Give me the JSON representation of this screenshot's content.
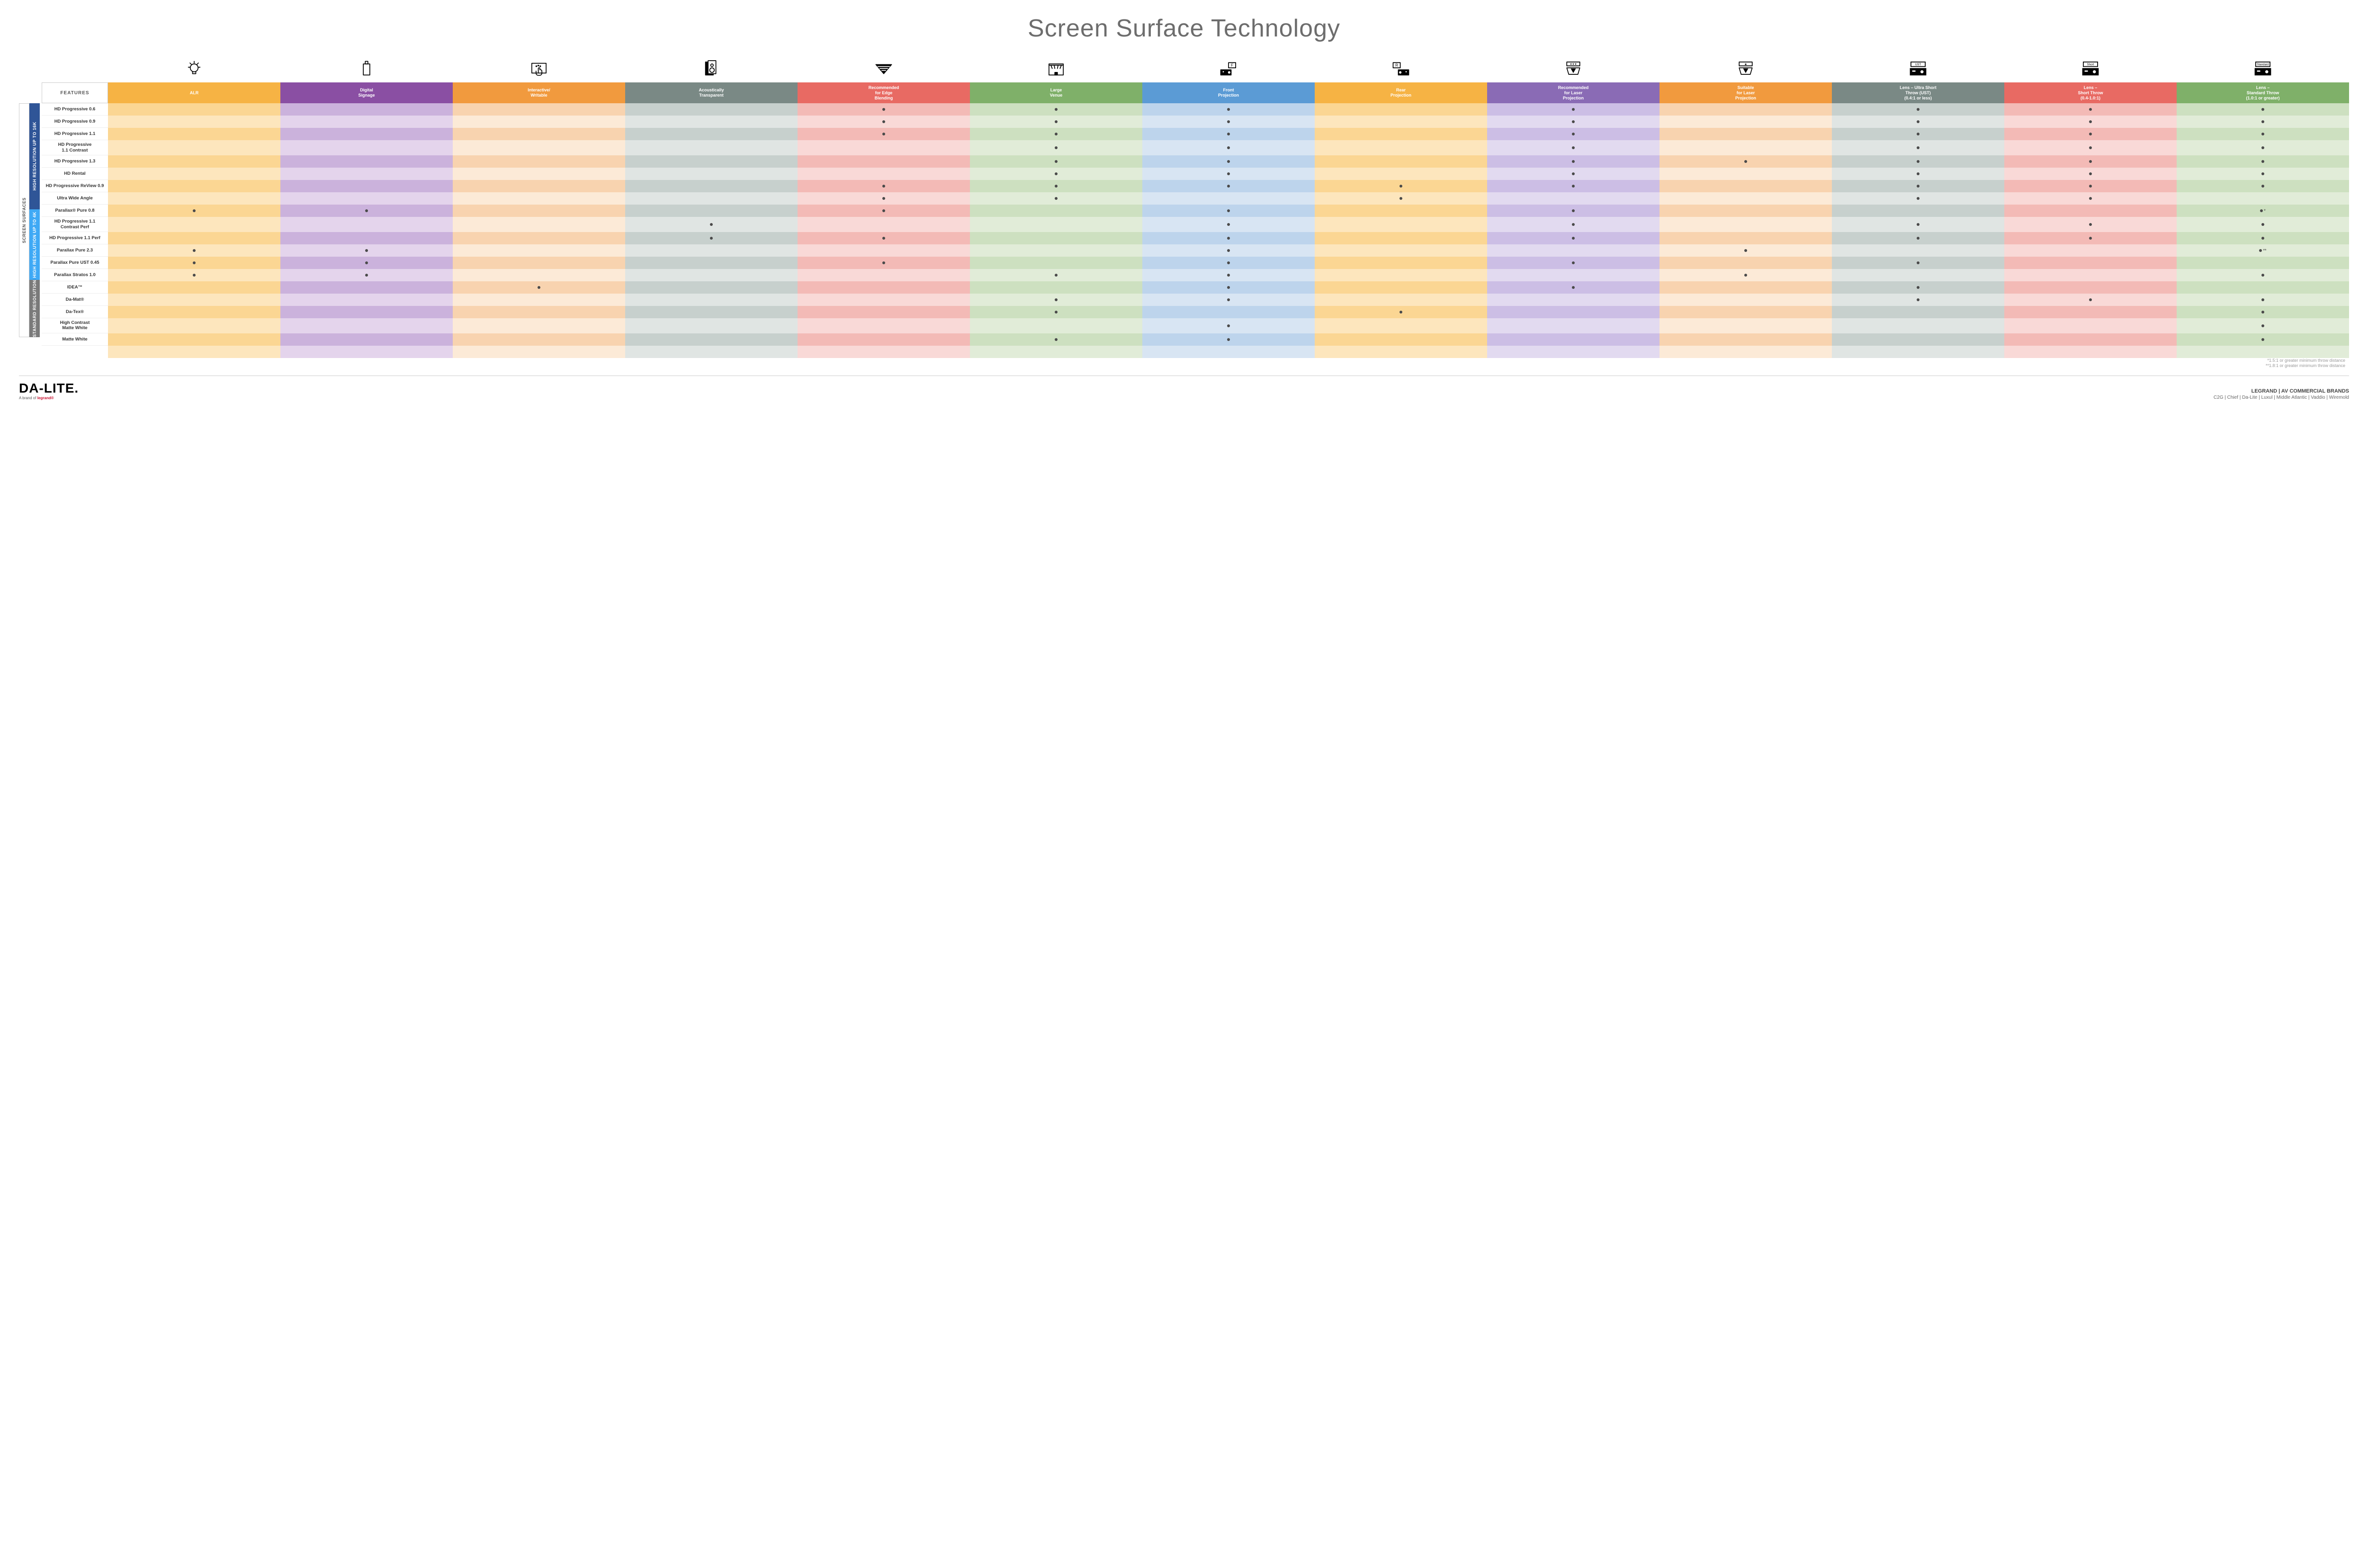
{
  "title": "Screen Surface Technology",
  "features_header": "FEATURES",
  "columns": [
    {
      "id": "alr",
      "label": "ALR",
      "color": "#f6b344",
      "pale": "#fde6bd",
      "mid": "#fbd693",
      "icon": "bulb"
    },
    {
      "id": "signage",
      "label": "Digital\nSignage",
      "color": "#8a4fa3",
      "pale": "#e4d4ec",
      "mid": "#cbb2dc",
      "icon": "signage"
    },
    {
      "id": "interactive",
      "label": "Interactive/\nWritable",
      "color": "#f19a3e",
      "pale": "#fcead7",
      "mid": "#f8d3af",
      "icon": "touch"
    },
    {
      "id": "acoustic",
      "label": "Acoustically\nTransparent",
      "color": "#7a8985",
      "pale": "#e0e5e3",
      "mid": "#c7d0cd",
      "icon": "speaker"
    },
    {
      "id": "edge",
      "label": "Recommended\nfor Edge\nBlending",
      "color": "#e86a63",
      "pale": "#f9d9d7",
      "mid": "#f3bab6",
      "icon": "blend"
    },
    {
      "id": "large",
      "label": "Large\nVenue",
      "color": "#7fb069",
      "pale": "#e1ecd8",
      "mid": "#cde0c0",
      "icon": "venue"
    },
    {
      "id": "front",
      "label": "Front\nProjection",
      "color": "#5b9bd5",
      "pale": "#d8e5f3",
      "mid": "#bdd4ec",
      "icon": "front"
    },
    {
      "id": "rear",
      "label": "Rear\nProjection",
      "color": "#f6b344",
      "pale": "#fde6bd",
      "mid": "#fbd693",
      "icon": "rear"
    },
    {
      "id": "reclaser",
      "label": "Recommended\nfor Laser\nProjection",
      "color": "#8a6bb5",
      "pale": "#e2daf0",
      "mid": "#ccbee5",
      "icon": "laser3"
    },
    {
      "id": "suitlaser",
      "label": "Suitable\nfor Laser\nProjection",
      "color": "#f19a3e",
      "pale": "#fcead7",
      "mid": "#f8d3af",
      "icon": "laser1"
    },
    {
      "id": "ust",
      "label": "Lens – Ultra Short\nThrow (UST)\n(0.4:1 or less)",
      "color": "#7a8985",
      "pale": "#e0e5e3",
      "mid": "#c7d0cd",
      "icon": "ust"
    },
    {
      "id": "short",
      "label": "Lens –\nShort Throw\n(0.4-1.0:1)",
      "color": "#e86a63",
      "pale": "#f9d9d7",
      "mid": "#f3bab6",
      "icon": "short"
    },
    {
      "id": "std",
      "label": "Lens –\nStandard Throw\n(1.0:1 or greater)",
      "color": "#7fb069",
      "pale": "#e1ecd8",
      "mid": "#cde0c0",
      "icon": "standard"
    }
  ],
  "side_outer": {
    "label": "SCREEN SURFACES",
    "color": "#ffffff",
    "text": "#555",
    "border": "#ccc"
  },
  "groups": [
    {
      "label": "HIGH RESOLUTION UP TO 16K",
      "color": "#2f5597",
      "rows": [
        {
          "name": "HD Progressive 0.6",
          "cells": [
            0,
            0,
            0,
            0,
            1,
            1,
            1,
            0,
            1,
            0,
            1,
            1,
            1
          ]
        },
        {
          "name": "HD Progressive 0.9",
          "cells": [
            0,
            0,
            0,
            0,
            1,
            1,
            1,
            0,
            1,
            0,
            1,
            1,
            1
          ]
        },
        {
          "name": "HD Progressive 1.1",
          "cells": [
            0,
            0,
            0,
            0,
            1,
            1,
            1,
            0,
            1,
            0,
            1,
            1,
            1
          ]
        },
        {
          "name": "HD Progressive\n1.1 Contrast",
          "cells": [
            0,
            0,
            0,
            0,
            0,
            1,
            1,
            0,
            1,
            0,
            1,
            1,
            1
          ]
        },
        {
          "name": "HD Progressive 1.3",
          "cells": [
            0,
            0,
            0,
            0,
            0,
            1,
            1,
            0,
            1,
            1,
            1,
            1,
            1
          ]
        },
        {
          "name": "HD Rental",
          "cells": [
            0,
            0,
            0,
            0,
            0,
            1,
            1,
            0,
            1,
            0,
            1,
            1,
            1
          ]
        },
        {
          "name": "HD Progressive ReView 0.9",
          "cells": [
            0,
            0,
            0,
            0,
            1,
            1,
            1,
            1,
            1,
            0,
            1,
            1,
            1
          ]
        },
        {
          "name": "Ultra Wide Angle",
          "cells": [
            0,
            0,
            0,
            0,
            1,
            1,
            0,
            1,
            0,
            0,
            1,
            1,
            0
          ]
        },
        {
          "name": "Parallax® Pure 0.8",
          "cells": [
            1,
            1,
            0,
            0,
            1,
            0,
            1,
            0,
            1,
            0,
            0,
            0,
            "•*"
          ]
        }
      ]
    },
    {
      "label": "HIGH RESOLUTION UP TO 4K",
      "color": "#3fa9f5",
      "rows": [
        {
          "name": "HD Progressive 1.1\nContrast Perf",
          "cells": [
            0,
            0,
            0,
            1,
            0,
            0,
            1,
            0,
            1,
            0,
            1,
            1,
            1
          ]
        },
        {
          "name": "HD Progressive 1.1 Perf",
          "cells": [
            0,
            0,
            0,
            1,
            1,
            0,
            1,
            0,
            1,
            0,
            1,
            1,
            1
          ]
        },
        {
          "name": "Parallax Pure 2.3",
          "cells": [
            1,
            1,
            0,
            0,
            0,
            0,
            1,
            0,
            0,
            1,
            0,
            0,
            "•**"
          ]
        },
        {
          "name": "Parallax Pure UST 0.45",
          "cells": [
            1,
            1,
            0,
            0,
            1,
            0,
            1,
            0,
            1,
            0,
            1,
            0,
            0
          ]
        },
        {
          "name": "Parallax Stratos 1.0",
          "cells": [
            1,
            1,
            0,
            0,
            0,
            1,
            1,
            0,
            0,
            1,
            0,
            0,
            1
          ]
        },
        {
          "name": "IDEA™",
          "cells": [
            0,
            0,
            1,
            0,
            0,
            0,
            1,
            0,
            1,
            0,
            1,
            0,
            0
          ]
        }
      ]
    },
    {
      "label": "STANDARD RESOLUTION",
      "color": "#7a7a7a",
      "rows": [
        {
          "name": "Da-Mat®",
          "cells": [
            0,
            0,
            0,
            0,
            0,
            1,
            1,
            0,
            0,
            0,
            1,
            1,
            1
          ]
        },
        {
          "name": "Da-Tex®",
          "cells": [
            0,
            0,
            0,
            0,
            0,
            1,
            0,
            1,
            0,
            0,
            0,
            0,
            1
          ]
        },
        {
          "name": "High Contrast\nMatte White",
          "cells": [
            0,
            0,
            0,
            0,
            0,
            0,
            1,
            0,
            0,
            0,
            0,
            0,
            1
          ]
        },
        {
          "name": "Matte White",
          "cells": [
            0,
            0,
            0,
            0,
            0,
            1,
            1,
            0,
            0,
            0,
            0,
            0,
            1
          ]
        }
      ]
    }
  ],
  "footnotes": [
    "*1.5:1 or greater minimum throw distance",
    "**1.8:1 or greater minimum throw distance"
  ],
  "footer": {
    "logo": "DA-LITE.",
    "logo_sub_prefix": "A brand of ",
    "logo_sub_brand": "legrand®",
    "right_title": "LEGRAND | AV COMMERCIAL BRANDS",
    "brands": "C2G  |  Chief  |  Da-Lite  |  Luxul  |  Middle Atlantic  |  Vaddio  |  Wiremold"
  },
  "icons_alt": {
    "bulb": "lightbulb-icon",
    "signage": "signage-icon",
    "touch": "touch-icon",
    "speaker": "speaker-icon",
    "blend": "blend-icon",
    "venue": "venue-icon",
    "front": "front-projector-icon",
    "rear": "rear-projector-icon",
    "laser3": "laser-3star-icon",
    "laser1": "laser-1star-icon",
    "ust": "ust-projector-icon",
    "short": "short-projector-icon",
    "standard": "standard-projector-icon"
  }
}
